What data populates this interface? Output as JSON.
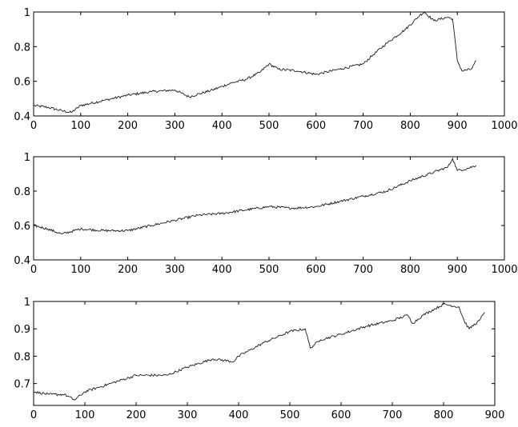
{
  "chart_data": [
    {
      "type": "line",
      "title": "",
      "xlabel": "",
      "ylabel": "",
      "xlim": [
        0,
        1000
      ],
      "ylim": [
        0.4,
        1.0
      ],
      "xticks": [
        0,
        100,
        200,
        300,
        400,
        500,
        600,
        700,
        800,
        900,
        1000
      ],
      "yticks": [
        0.4,
        0.6,
        0.8,
        1.0
      ],
      "xtick_labels": [
        "0",
        "100",
        "200",
        "300",
        "400",
        "500",
        "600",
        "700",
        "800",
        "900",
        "1000"
      ],
      "ytick_labels": [
        "0.4",
        "0.6",
        "0.8",
        "1"
      ],
      "grid": false,
      "series": [
        {
          "color": "#1a1a1a",
          "x": [
            0,
            30,
            60,
            80,
            100,
            150,
            200,
            250,
            300,
            330,
            380,
            420,
            450,
            480,
            500,
            520,
            560,
            600,
            650,
            700,
            720,
            750,
            790,
            820,
            830,
            850,
            880,
            890,
            900,
            910,
            930,
            940
          ],
          "y": [
            0.46,
            0.45,
            0.43,
            0.42,
            0.46,
            0.49,
            0.52,
            0.54,
            0.55,
            0.51,
            0.55,
            0.59,
            0.61,
            0.65,
            0.7,
            0.67,
            0.66,
            0.64,
            0.67,
            0.7,
            0.75,
            0.82,
            0.9,
            0.98,
            1.0,
            0.95,
            0.97,
            0.96,
            0.72,
            0.66,
            0.67,
            0.72
          ]
        }
      ]
    },
    {
      "type": "line",
      "title": "",
      "xlabel": "",
      "ylabel": "",
      "xlim": [
        0,
        1000
      ],
      "ylim": [
        0.4,
        1.0
      ],
      "xticks": [
        0,
        100,
        200,
        300,
        400,
        500,
        600,
        700,
        800,
        900,
        1000
      ],
      "yticks": [
        0.4,
        0.6,
        0.8,
        1.0
      ],
      "xtick_labels": [
        "0",
        "100",
        "200",
        "300",
        "400",
        "500",
        "600",
        "700",
        "800",
        "900",
        "1000"
      ],
      "ytick_labels": [
        "0.4",
        "0.6",
        "0.8",
        "1"
      ],
      "grid": false,
      "series": [
        {
          "color": "#1a1a1a",
          "x": [
            0,
            30,
            60,
            100,
            150,
            200,
            250,
            300,
            350,
            400,
            450,
            500,
            550,
            600,
            650,
            700,
            750,
            800,
            850,
            880,
            890,
            900,
            920,
            940
          ],
          "y": [
            0.6,
            0.58,
            0.55,
            0.58,
            0.57,
            0.57,
            0.6,
            0.63,
            0.66,
            0.67,
            0.69,
            0.71,
            0.7,
            0.71,
            0.74,
            0.77,
            0.8,
            0.86,
            0.91,
            0.94,
            0.99,
            0.92,
            0.93,
            0.95
          ]
        }
      ]
    },
    {
      "type": "line",
      "title": "",
      "xlabel": "",
      "ylabel": "",
      "xlim": [
        0,
        900
      ],
      "ylim": [
        0.62,
        1.0
      ],
      "xticks": [
        0,
        100,
        200,
        300,
        400,
        500,
        600,
        700,
        800,
        900
      ],
      "yticks": [
        0.7,
        0.8,
        0.9,
        1.0
      ],
      "xtick_labels": [
        "0",
        "100",
        "200",
        "300",
        "400",
        "500",
        "600",
        "700",
        "800",
        "900"
      ],
      "ytick_labels": [
        "0.7",
        "0.8",
        "0.9",
        "1"
      ],
      "grid": false,
      "series": [
        {
          "color": "#1a1a1a",
          "x": [
            0,
            30,
            60,
            80,
            100,
            150,
            200,
            260,
            300,
            350,
            390,
            400,
            450,
            500,
            530,
            540,
            560,
            600,
            650,
            700,
            730,
            740,
            760,
            800,
            830,
            840,
            850,
            870,
            880
          ],
          "y": [
            0.67,
            0.66,
            0.66,
            0.64,
            0.67,
            0.7,
            0.73,
            0.73,
            0.76,
            0.79,
            0.78,
            0.8,
            0.85,
            0.89,
            0.9,
            0.83,
            0.86,
            0.88,
            0.91,
            0.93,
            0.95,
            0.92,
            0.95,
            0.99,
            0.98,
            0.93,
            0.9,
            0.93,
            0.96
          ]
        }
      ]
    }
  ]
}
